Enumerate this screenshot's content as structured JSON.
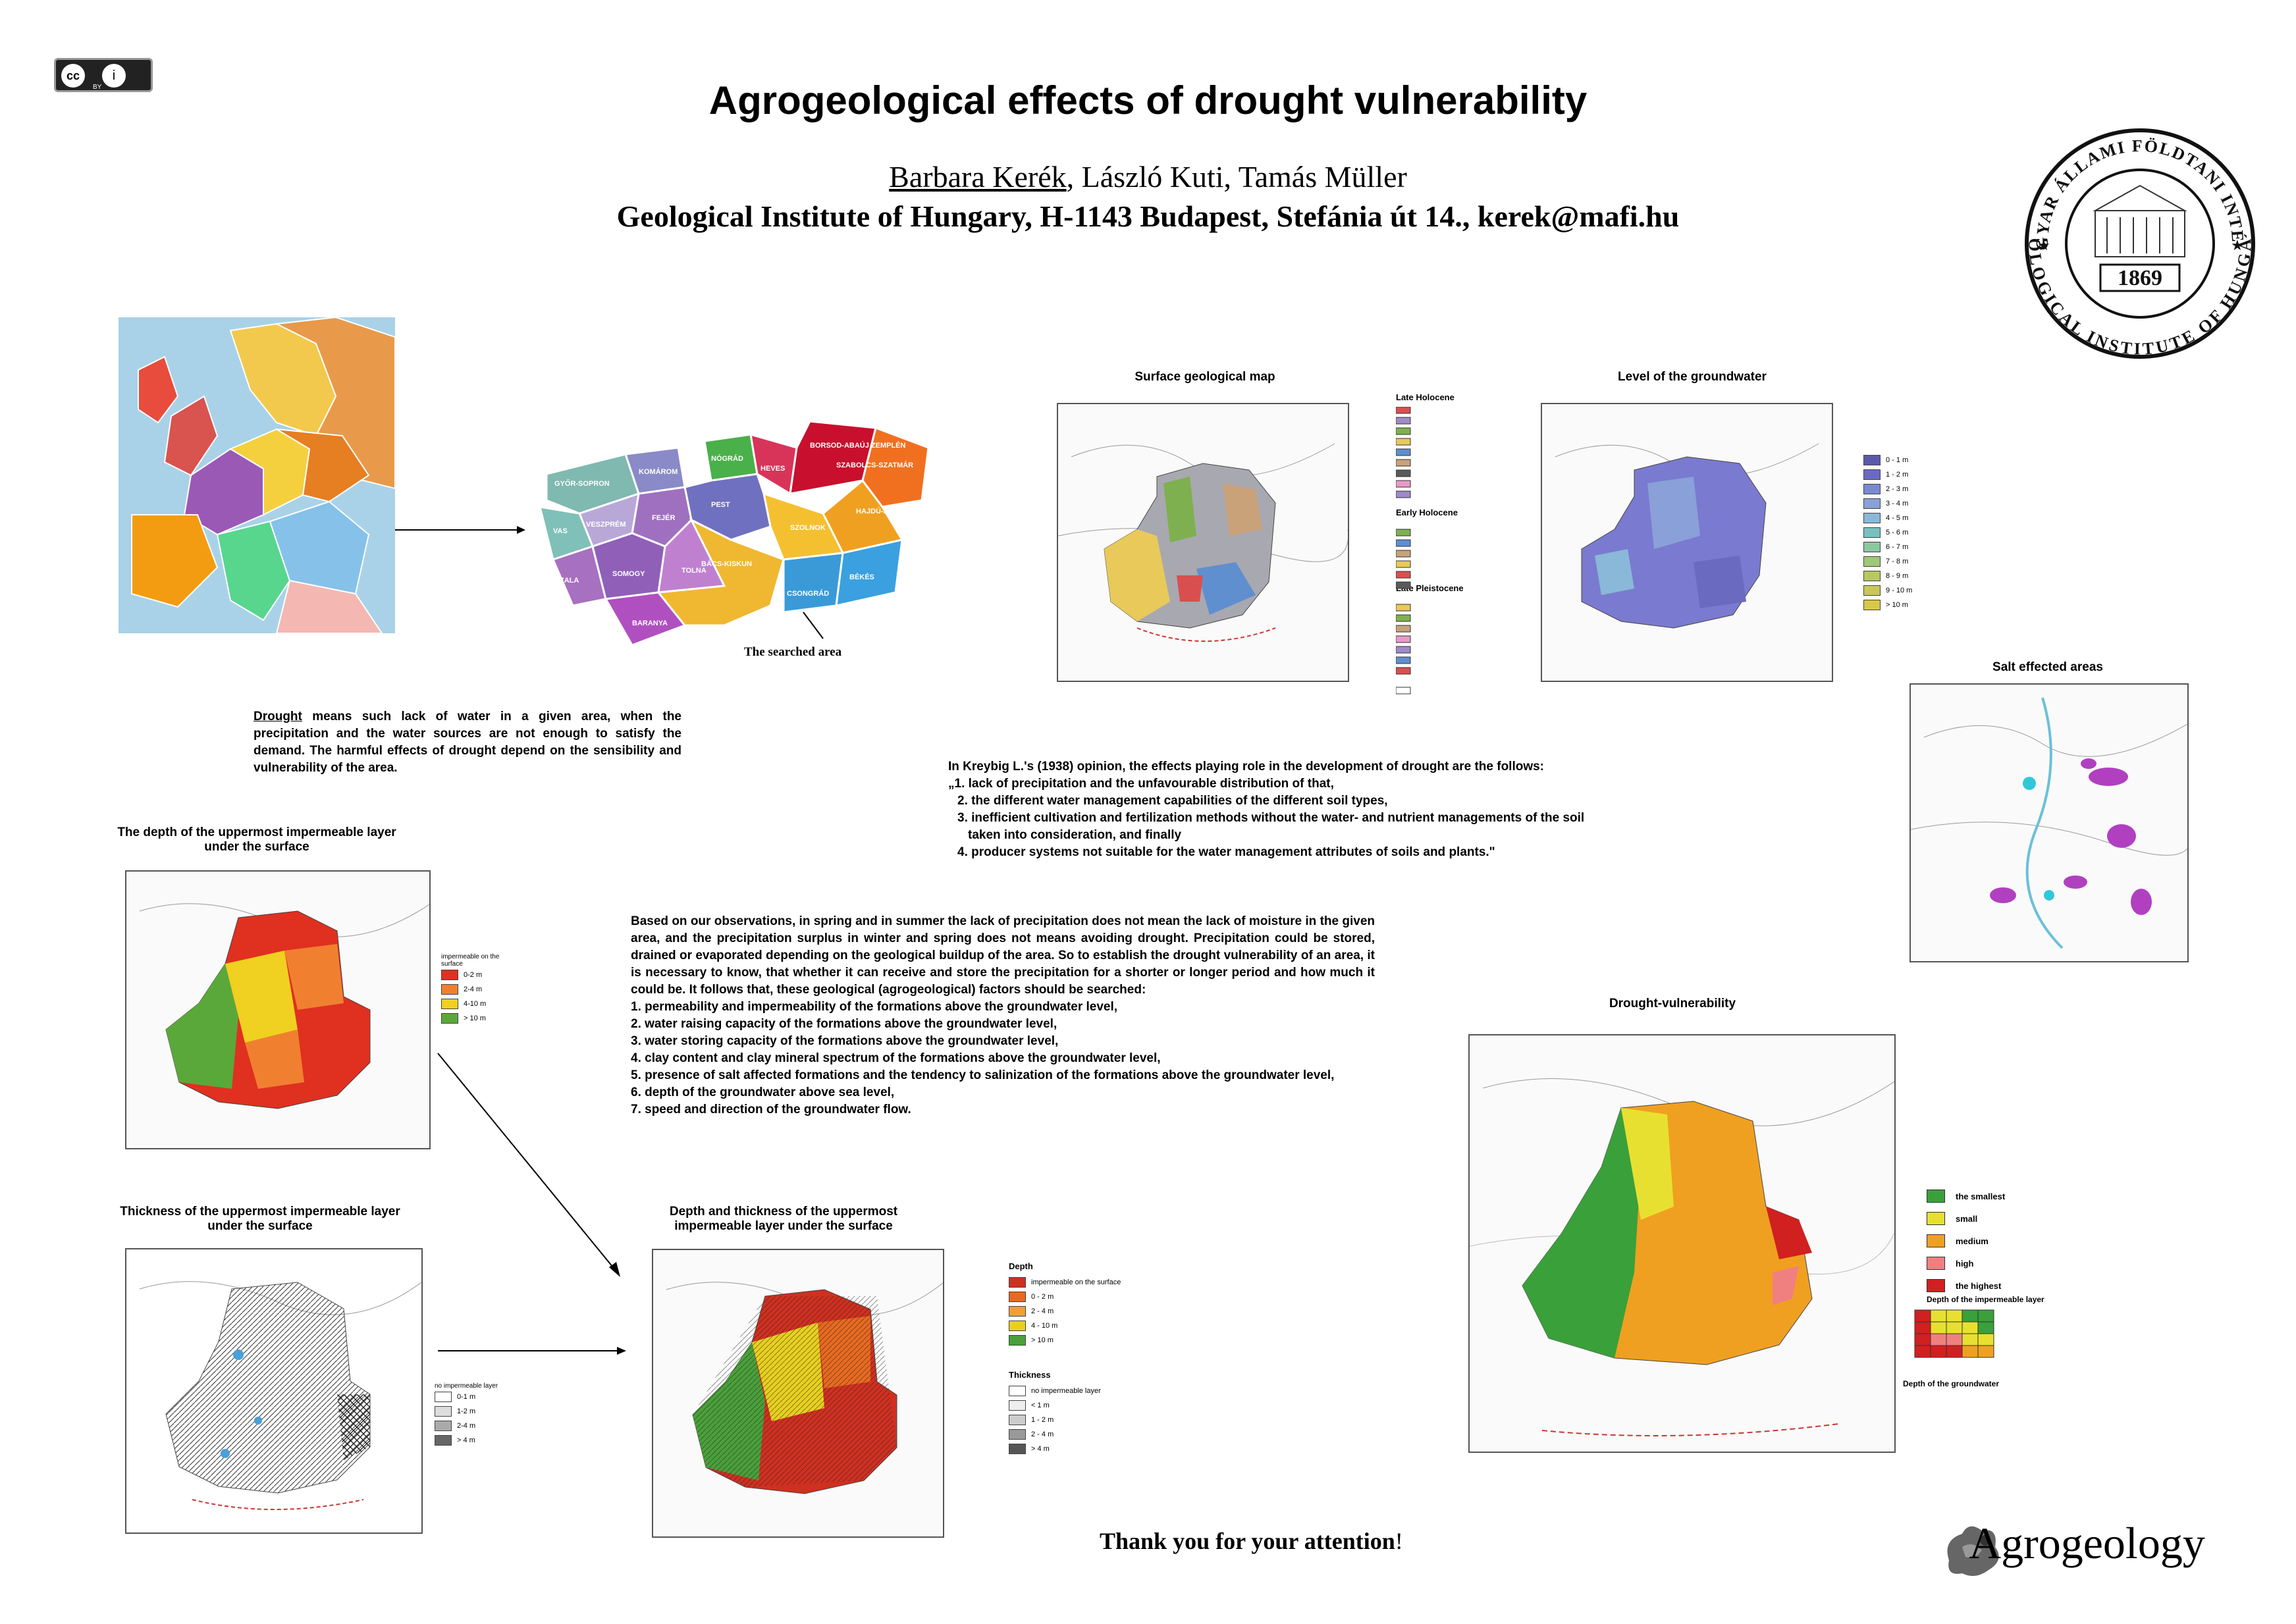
{
  "header": {
    "title": "Agrogeological effects of drought vulnerability",
    "author_1": "Barbara Kerék",
    "author_1_sep": ",",
    "author_2": "László Kuti",
    "author_2_sep": ",",
    "author_3": "Tamás Müller",
    "affiliation": "Geological Institute of Hungary, H-1143 Budapest, Stefánia út 14., kerek@mafi.hu"
  },
  "license": {
    "badge_left": "cc",
    "badge_right": "i",
    "label": "BY"
  },
  "logo": {
    "top_text": "MAGYAR ÁLLAMI FÖLDTANI INTÉZET",
    "bottom_text": "GEOLOGICAL INSTITUTE OF HUNGARY",
    "year": "1869"
  },
  "hungary_map": {
    "counties": [
      "GYŐR-SOPRON",
      "KOMÁROM",
      "NÓGRÁD",
      "HEVES",
      "BORSOD-ABAÚJ ZEMPLÉN",
      "SZABOLCS-SZATMÁR",
      "HAJDÚ-BIHAR",
      "SZOLNOK",
      "PEST",
      "FEJÉR",
      "VESZPRÉM",
      "VAS",
      "ZALA",
      "SOMOGY",
      "TOLNA",
      "BARANYA",
      "BÁCS-KISKUN",
      "CSONGRÁD",
      "BÉKÉS"
    ],
    "searched_area_label": "The searched area"
  },
  "drought_def": {
    "term": "Drought",
    "text": " means such lack of water in a given area, when the precipitation and the water sources are not enough to satisfy the demand. The harmful effects of drought depend on the sensibility and vulnerability of the area."
  },
  "kreybig": {
    "intro": "In Kreybig L.'s (1938) opinion, the effects playing role in the development of drought are the follows:",
    "items": [
      "„1. lack of precipitation and the unfavourable distribution of that,",
      "2. the different water management capabilities of the different soil types,",
      "3. inefficient cultivation and fertilization methods without the water- and nutrient managements of the soil",
      "taken into consideration, and finally",
      "4. producer systems not suitable for the water management attributes of soils and plants.\""
    ]
  },
  "observations": {
    "text": "Based on our observations, in spring and in summer the lack of precipitation does not mean the lack of moisture in the given area, and the precipitation surplus in winter and spring does not means avoiding drought. Precipitation could be stored, drained or evaporated depending on the geological buildup of the area. So to establish the drought vulnerability of an area, it is necessary to know, that whether it can receive and store the precipitation for a shorter or longer period and how much it could be. It follows that, these geological (agrogeological) factors should be searched:",
    "factors": [
      "1. permeability and impermeability of the formations above the groundwater level,",
      "2. water raising capacity of the formations above the groundwater level,",
      "3. water storing capacity of the formations above the groundwater level,",
      "4. clay content and clay mineral spectrum of the formations above the groundwater level,",
      "5. presence of salt affected formations and the tendency to salinization of the formations above the groundwater level,",
      "6. depth of the groundwater above sea level,",
      "7. speed and direction of the groundwater flow."
    ]
  },
  "maps": {
    "surface_geo": {
      "caption": "Surface geological map",
      "legend_groups": [
        "Late Holocene",
        "Early Holocene",
        "Late Pleistocene"
      ],
      "colors": [
        "#d94f4f",
        "#7fb04f",
        "#a08ac8",
        "#e8c95a",
        "#5f8fcf",
        "#c9a27a",
        "#5a5a5a",
        "#e89ac8"
      ]
    },
    "groundwater": {
      "caption": "Level of the groundwater",
      "legend": [
        "0 - 1 m",
        "1 - 2 m",
        "2 - 3 m",
        "3 - 4 m",
        "4 - 5 m",
        "5 - 6 m",
        "6 - 7 m",
        "7 - 8 m",
        "8 - 9 m",
        "9 - 10 m",
        "> 10 m"
      ],
      "colors": [
        "#5a5aa8",
        "#6a6ac0",
        "#7a8ad0",
        "#8aa0d8",
        "#8ab8d8",
        "#7ac0c0",
        "#8ac8a0",
        "#a0c878",
        "#b8c860",
        "#c8c858",
        "#d8c848"
      ]
    },
    "salt": {
      "caption": "Salt effected areas",
      "color": "#b040c0"
    },
    "depth_imperm": {
      "caption": "The depth of the uppermost impermeable layer under the surface",
      "legend_title": "impermeable on the surface",
      "legend": [
        "0-2 m",
        "2-4 m",
        "4-10 m",
        "> 10 m"
      ],
      "colors": [
        "#e03020",
        "#f08030",
        "#f0d020",
        "#5aa83a"
      ]
    },
    "thickness_imperm": {
      "caption": "Thickness of the uppermost impermeable layer under the surface",
      "legend_title": "no impermeable layer",
      "legend": [
        "0-1 m",
        "1-2 m",
        "2-4 m",
        "> 4 m"
      ]
    },
    "depth_thickness": {
      "caption": "Depth and thickness of the uppermost impermeable layer under the surface",
      "depth_title": "Depth",
      "depth_legend": [
        "impermeable on the surface",
        "0 - 2 m",
        "2 - 4 m",
        "4 - 10 m",
        "> 10 m"
      ],
      "depth_colors": [
        "#d03020",
        "#e86a20",
        "#f0a030",
        "#e8d020",
        "#4aa03a"
      ],
      "thickness_title": "Thickness",
      "thickness_legend": [
        "no impermeable layer",
        "< 1 m",
        "1 - 2 m",
        "2 - 4 m",
        "> 4 m"
      ]
    },
    "drought_vuln": {
      "caption": "Drought-vulnerability",
      "legend": [
        "the smallest",
        "small",
        "medium",
        "high",
        "the highest"
      ],
      "colors": [
        "#3aa03a",
        "#e8e030",
        "#f0a020",
        "#f08080",
        "#d02020"
      ],
      "matrix_title": "Depth of the impermeable layer",
      "matrix_footer": "Depth of the groundwater"
    }
  },
  "footer": {
    "thanks": "Thank you for your attention",
    "thanks_mark": "!",
    "brand": "Agrogeology"
  }
}
